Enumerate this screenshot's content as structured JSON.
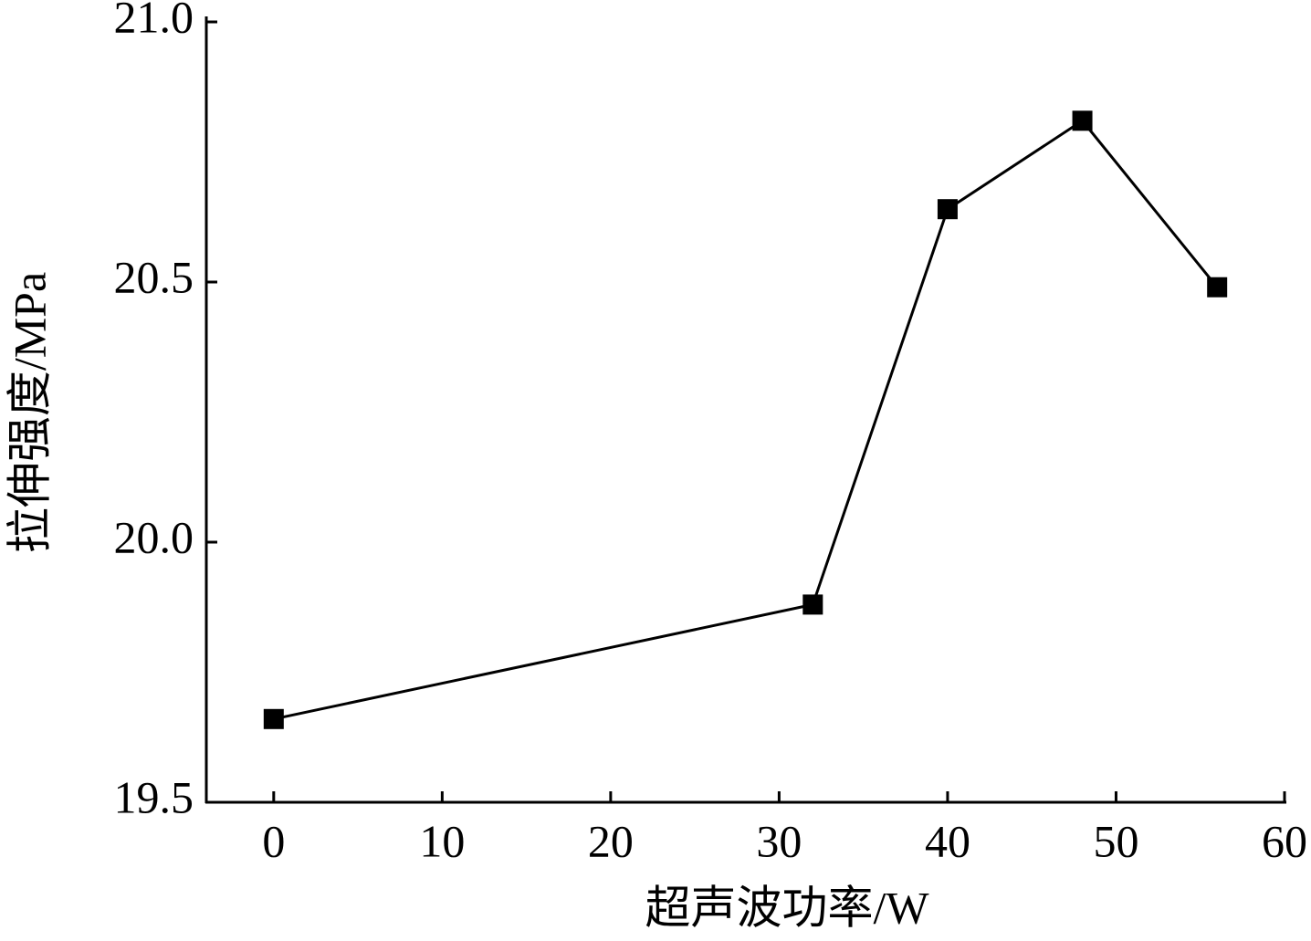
{
  "chart_data": {
    "type": "line",
    "x_label": "超声波功率/W",
    "y_label": "拉伸强度/MPa",
    "x": [
      0,
      32,
      40,
      48,
      56
    ],
    "series": [
      {
        "color": "#000000",
        "values": [
          19.66,
          19.88,
          20.64,
          20.81,
          20.49
        ]
      }
    ],
    "xlim": [
      -4,
      60
    ],
    "xticks": [
      0,
      10,
      20,
      30,
      40,
      50,
      60
    ],
    "ylim": [
      19.5,
      21.0
    ],
    "yticks": [
      19.5,
      {
        "value": 20.0,
        "label": "20.0"
      },
      20.5,
      {
        "value": 21.0,
        "label": "21.0"
      }
    ]
  }
}
